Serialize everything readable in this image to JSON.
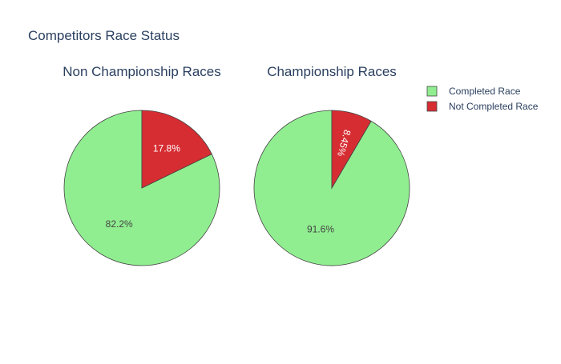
{
  "chart_data": {
    "type": "pie",
    "title": "Competitors Race Status",
    "legend": {
      "placement": "top-right",
      "entries": [
        {
          "label": "Completed Race",
          "color": "#90EE90"
        },
        {
          "label": "Not Completed Race",
          "color": "#D62D33"
        }
      ]
    },
    "pies": [
      {
        "title": "Non Championship Races",
        "slices": [
          {
            "label": "Completed Race",
            "value": 82.2,
            "text": "82.2%",
            "color": "#90EE90",
            "text_color": "#444444"
          },
          {
            "label": "Not Completed Race",
            "value": 17.8,
            "text": "17.8%",
            "color": "#D62D33",
            "text_color": "#ffffff"
          }
        ]
      },
      {
        "title": "Championship Races",
        "slices": [
          {
            "label": "Completed Race",
            "value": 91.55,
            "text": "91.6%",
            "color": "#90EE90",
            "text_color": "#444444"
          },
          {
            "label": "Not Completed Race",
            "value": 8.45,
            "text": "8.45%",
            "color": "#D62D33",
            "text_color": "#ffffff"
          }
        ]
      }
    ]
  }
}
